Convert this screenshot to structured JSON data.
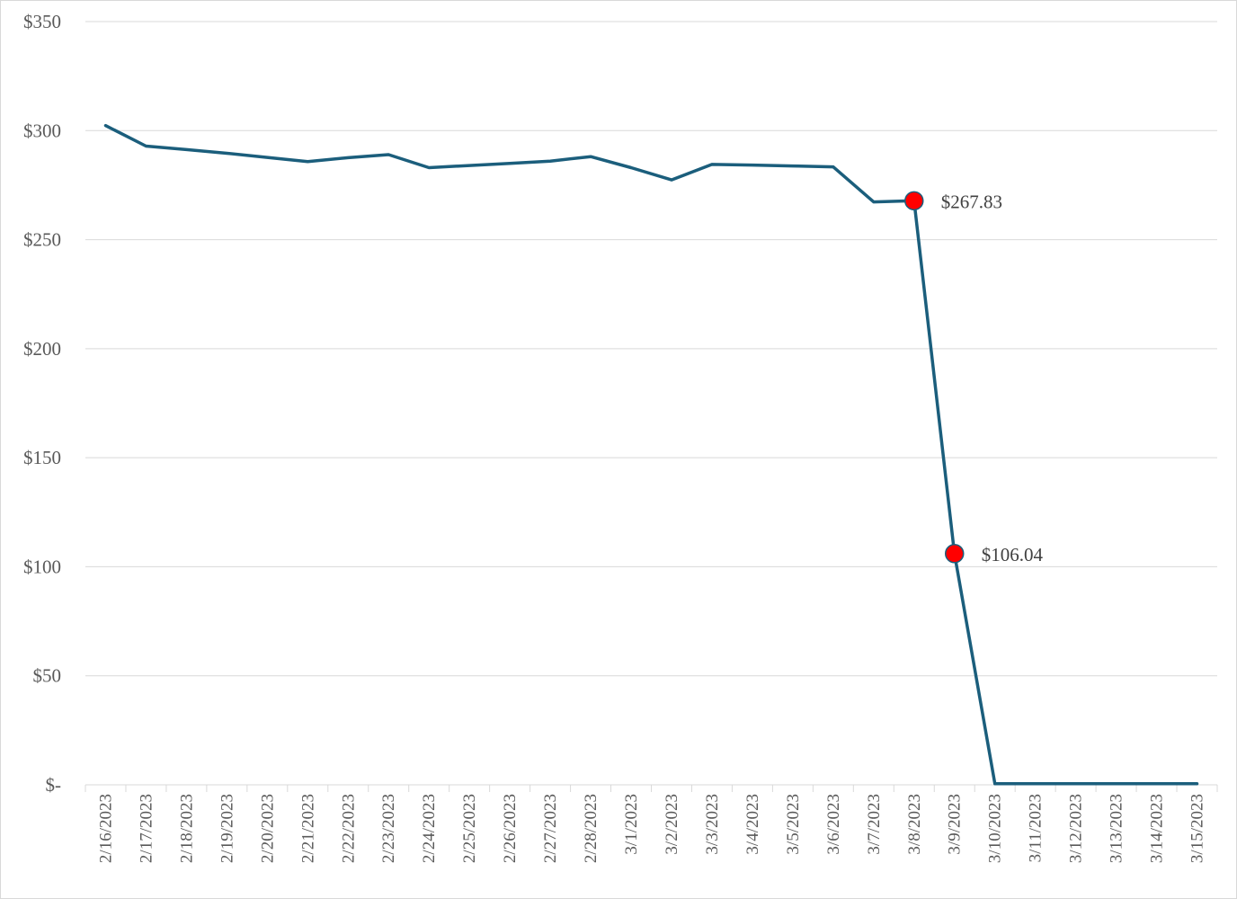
{
  "chart_data": {
    "type": "line",
    "title": "",
    "xlabel": "",
    "ylabel": "",
    "x": [
      "2/16/2023",
      "2/17/2023",
      "2/18/2023",
      "2/19/2023",
      "2/20/2023",
      "2/21/2023",
      "2/22/2023",
      "2/23/2023",
      "2/24/2023",
      "2/25/2023",
      "2/26/2023",
      "2/27/2023",
      "2/28/2023",
      "3/1/2023",
      "3/2/2023",
      "3/3/2023",
      "3/4/2023",
      "3/5/2023",
      "3/6/2023",
      "3/7/2023",
      "3/8/2023",
      "3/9/2023",
      "3/10/2023",
      "3/11/2023",
      "3/12/2023",
      "3/13/2023",
      "3/14/2023",
      "3/15/2023"
    ],
    "series": [
      {
        "color": "#1b5e7c",
        "values": [
          302.3,
          292.9,
          291.3,
          289.6,
          287.7,
          285.8,
          287.6,
          289.0,
          283.0,
          284.0,
          285.0,
          286.0,
          288.1,
          283.0,
          277.4,
          284.5,
          284.2,
          283.8,
          283.4,
          267.3,
          267.83,
          106.04,
          0.5,
          0.5,
          0.5,
          0.5,
          0.5,
          0.5
        ]
      }
    ],
    "highlighted_points": [
      {
        "x": "3/8/2023",
        "value": 267.83,
        "label": "$267.83"
      },
      {
        "x": "3/9/2023",
        "value": 106.04,
        "label": "$106.04"
      }
    ],
    "highlight_color": "#ff0000",
    "ylim": [
      0,
      350
    ],
    "yticks": [
      350,
      300,
      250,
      200,
      150,
      100,
      50,
      0
    ],
    "ytick_labels": [
      "$350",
      "$300",
      "$250",
      "$200",
      "$150",
      "$100",
      "$50",
      "$-"
    ],
    "grid": true,
    "gridline_color": "#d9d9d9",
    "legend": "none"
  }
}
